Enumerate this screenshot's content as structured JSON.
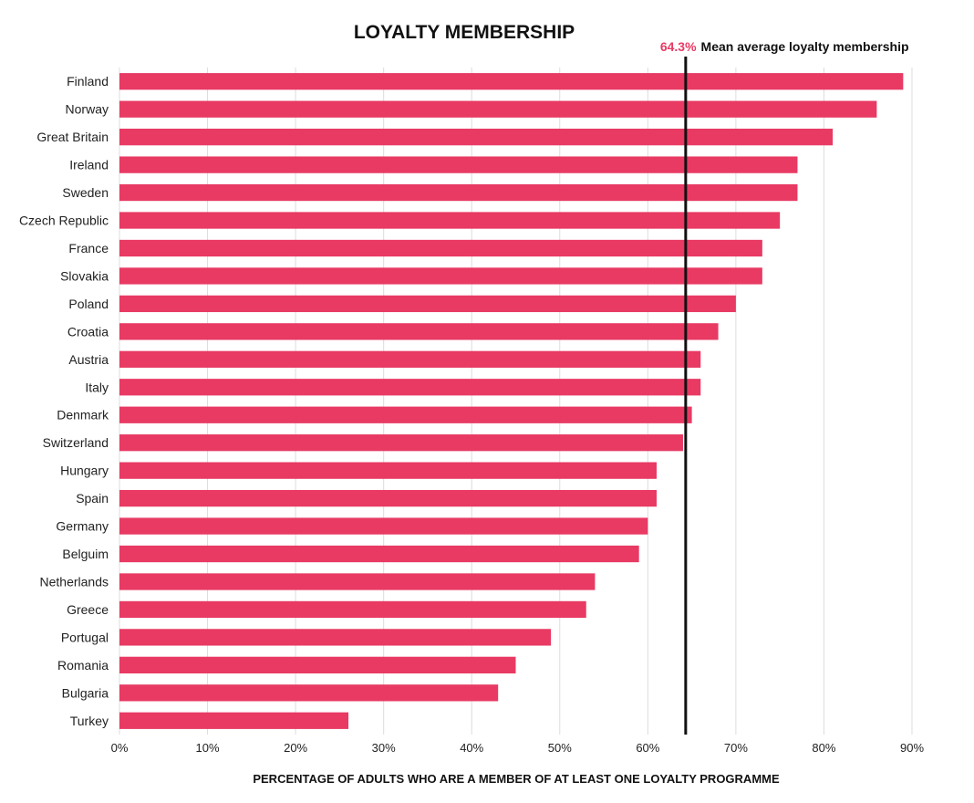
{
  "chart_data": {
    "type": "bar",
    "orientation": "horizontal",
    "title": "LOYALTY MEMBERSHIP",
    "xlabel": "PERCENTAGE OF ADULTS WHO ARE A MEMBER OF AT LEAST ONE LOYALTY PROGRAMME",
    "ylabel": "",
    "categories": [
      "Finland",
      "Norway",
      "Great Britain",
      "Ireland",
      "Sweden",
      "Czech Republic",
      "France",
      "Slovakia",
      "Poland",
      "Croatia",
      "Austria",
      "Italy",
      "Denmark",
      "Switzerland",
      "Hungary",
      "Spain",
      "Germany",
      "Belguim",
      "Netherlands",
      "Greece",
      "Portugal",
      "Romania",
      "Bulgaria",
      "Turkey"
    ],
    "values": [
      89,
      86,
      81,
      77,
      77,
      75,
      73,
      73,
      70,
      68,
      66,
      66,
      65,
      64,
      61,
      61,
      60,
      59,
      54,
      53,
      49,
      45,
      43,
      26
    ],
    "xlim": [
      0,
      90
    ],
    "xticks": [
      "0%",
      "10%",
      "20%",
      "30%",
      "40%",
      "50%",
      "60%",
      "70%",
      "80%",
      "90%"
    ],
    "xtick_values": [
      0,
      10,
      20,
      30,
      40,
      50,
      60,
      70,
      80,
      90
    ],
    "grid": "vertical",
    "bar_color": "#e83a63",
    "reference_line": {
      "value": 64.3,
      "value_label": "64.3%",
      "label": "Mean average loyalty membership",
      "value_color": "#e83a63",
      "line_color": "#111111"
    }
  }
}
